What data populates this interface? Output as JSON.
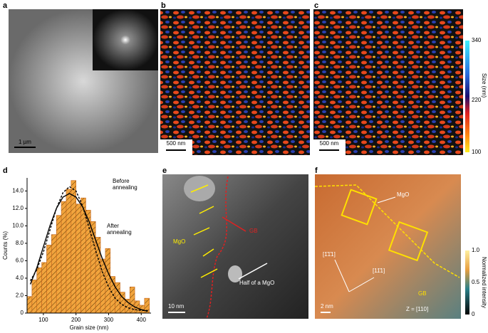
{
  "panels": {
    "a": {
      "label": "a",
      "scale_bar": "1 µm"
    },
    "b": {
      "label": "b",
      "scale_bar": "500 nm"
    },
    "c": {
      "label": "c",
      "scale_bar": "500 nm",
      "colorbar": {
        "title": "Size (nm)",
        "ticks": [
          340,
          220,
          100
        ]
      }
    },
    "d": {
      "label": "d"
    },
    "e": {
      "label": "e",
      "annotations": [
        "MgO",
        "GB",
        "Half of a MgO"
      ],
      "scale_bar": "10 nm"
    },
    "f": {
      "label": "f",
      "annotations": [
        "MgO",
        "[1̄1̄1]",
        "[11̄1]",
        "GB",
        "Z = [110]"
      ],
      "scale_bar": "2 nm",
      "colorbar": {
        "title": "Normalized intensity",
        "ticks": [
          {
            "value": 1,
            "label": "1.0"
          },
          {
            "value": 0.5,
            "label": "0.5"
          },
          0
        ]
      }
    }
  },
  "chart_data": {
    "type": "histogram",
    "xlabel": "Grain size (nm)",
    "ylabel": "Counts (%)",
    "color": "#f2a43d",
    "bins": [
      50,
      65,
      80,
      95,
      110,
      125,
      140,
      155,
      170,
      185,
      200,
      215,
      230,
      245,
      260,
      275,
      290,
      305,
      320,
      335,
      350,
      365,
      380,
      395,
      410,
      425
    ],
    "values": [
      1.9,
      3.8,
      5.2,
      5.8,
      7.8,
      9.0,
      11.2,
      12.8,
      14.2,
      15.2,
      12.5,
      13.2,
      11.8,
      10.5,
      8.7,
      6.2,
      7.4,
      4.2,
      3.5,
      2.4,
      1.6,
      3.0,
      1.4,
      0.9,
      1.7
    ],
    "series": [
      {
        "dashed": true,
        "color": "#000000",
        "x": [
          60,
          80,
          100,
          120,
          140,
          160,
          180,
          200,
          220,
          240,
          260,
          280,
          300,
          320,
          340,
          360,
          380,
          400,
          420
        ],
        "values": [
          3.7,
          5.0,
          7.0,
          9.5,
          12.0,
          13.8,
          14.5,
          14.0,
          12.3,
          9.8,
          7.2,
          4.8,
          3.0,
          1.7,
          1.0,
          0.6,
          0.4,
          0.3,
          0.3
        ]
      },
      {
        "dashed": false,
        "color": "#000000",
        "x": [
          60,
          80,
          100,
          120,
          140,
          160,
          180,
          200,
          220,
          240,
          260,
          280,
          300,
          320,
          340,
          360,
          380,
          400,
          420
        ],
        "values": [
          3.3,
          5.2,
          7.6,
          10.0,
          12.0,
          13.3,
          13.7,
          13.3,
          12.2,
          10.5,
          8.4,
          6.3,
          4.5,
          3.0,
          1.9,
          1.2,
          0.7,
          0.4,
          0.2
        ]
      }
    ],
    "annotations": [
      "Before annealing",
      "After annealing"
    ],
    "xlim": [
      50,
      430
    ],
    "xticks": [
      100,
      200,
      300,
      400
    ],
    "ylim": [
      0,
      15.5
    ],
    "yticks": [
      0,
      {
        "value": 2,
        "label": "2.0"
      },
      {
        "value": 4,
        "label": "4.0"
      },
      {
        "value": 6,
        "label": "6.0"
      },
      {
        "value": 8,
        "label": "8.0"
      },
      {
        "value": 10,
        "label": "10.0"
      },
      {
        "value": 12,
        "label": "12.0"
      },
      {
        "value": 14,
        "label": "14.0"
      }
    ]
  }
}
